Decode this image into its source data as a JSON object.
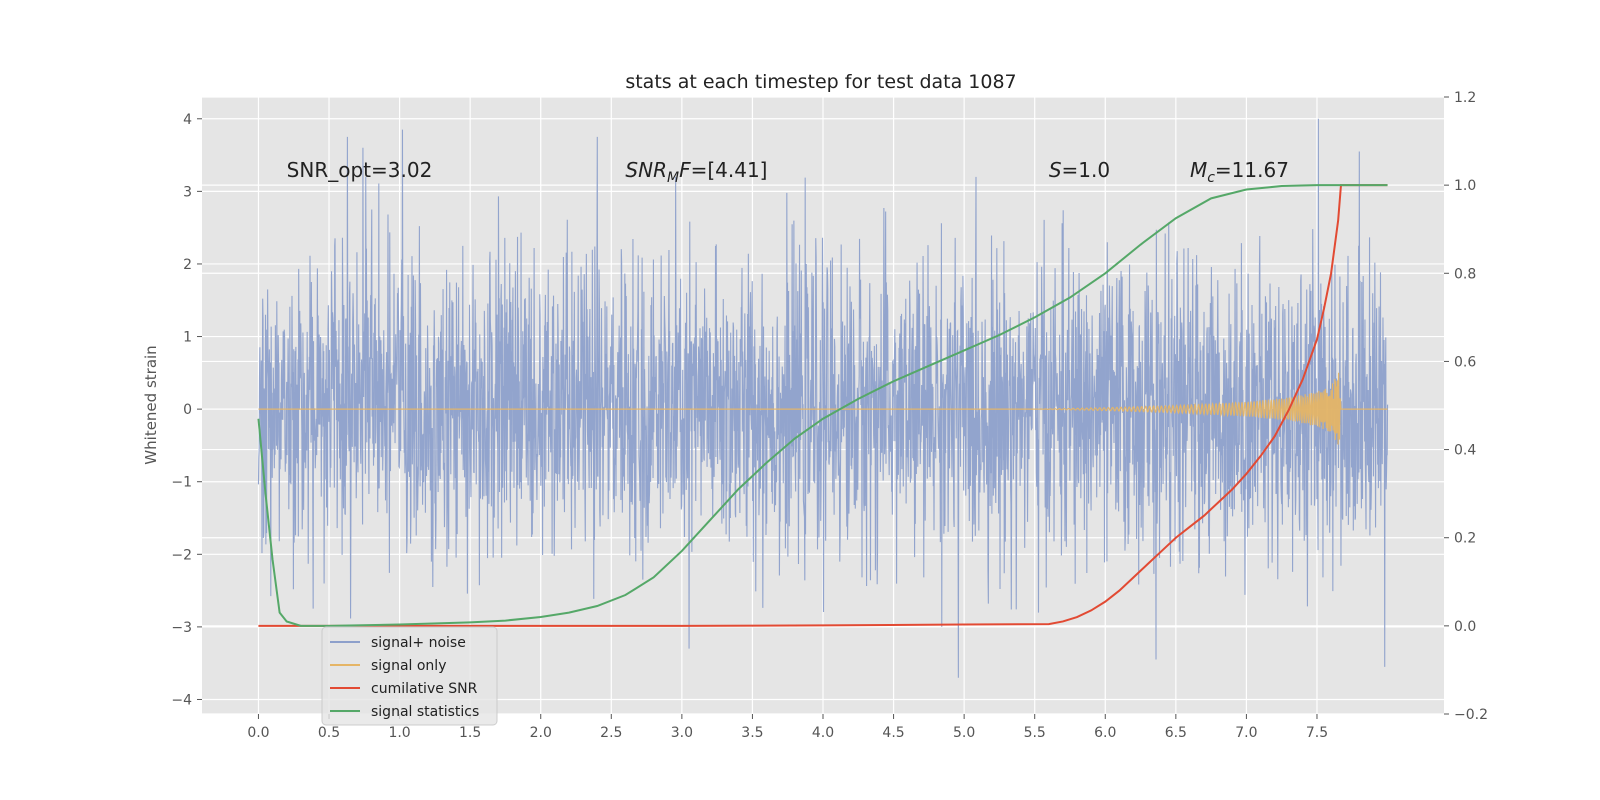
{
  "chart_data": {
    "type": "line",
    "title": "stats at each timestep for test data 1087",
    "ylabel": "Whitened strain",
    "xlim": [
      -0.4,
      8.4
    ],
    "ylim": [
      -4.2,
      4.3
    ],
    "y2lim": [
      -0.2,
      1.2
    ],
    "x_ticks": [
      "0.0",
      "0.5",
      "1.0",
      "1.5",
      "2.0",
      "2.5",
      "3.0",
      "3.5",
      "4.0",
      "4.5",
      "5.0",
      "5.5",
      "6.0",
      "6.5",
      "7.0",
      "7.5"
    ],
    "y_ticks": [
      "−4",
      "−3",
      "−2",
      "−1",
      "0",
      "1",
      "2",
      "3",
      "4"
    ],
    "y2_ticks": [
      "−0.2",
      "0.0",
      "0.2",
      "0.4",
      "0.6",
      "0.8",
      "1.0",
      "1.2"
    ],
    "grid": true,
    "legend_position": "lower-left",
    "annotations": [
      {
        "text": "SNR_opt=3.02",
        "x": 0.2,
        "y": 3.2
      },
      {
        "text": "SNRMF=[4.41]",
        "x": 2.6,
        "y": 3.2
      },
      {
        "text": "S=1.0",
        "x": 5.6,
        "y": 3.2
      },
      {
        "text": "Mc=11.67",
        "x": 6.6,
        "y": 3.2
      }
    ],
    "series": [
      {
        "name": "signal+ noise",
        "axis": "left",
        "color": "#8da0cb",
        "description_range": [
          -3.6,
          4.0
        ],
        "x": [
          0.0,
          8.0
        ],
        "peaks": [
          {
            "x": 0.63,
            "y": 3.75
          },
          {
            "x": 0.74,
            "y": 3.6
          },
          {
            "x": 1.02,
            "y": 3.85
          },
          {
            "x": 2.4,
            "y": 3.75
          },
          {
            "x": 7.51,
            "y": 4.0
          },
          {
            "x": 7.8,
            "y": 3.55
          },
          {
            "x": 4.96,
            "y": -3.7
          },
          {
            "x": 7.98,
            "y": -3.55
          },
          {
            "x": 6.36,
            "y": -3.45
          },
          {
            "x": 3.05,
            "y": -3.3
          }
        ]
      },
      {
        "name": "signal only",
        "axis": "left",
        "color": "#e5b566",
        "x": [
          0.0,
          5.5,
          6.0,
          6.5,
          7.0,
          7.3,
          7.5,
          7.6,
          7.66,
          7.67,
          8.0
        ],
        "amplitude": [
          0.0,
          0.0,
          0.02,
          0.05,
          0.1,
          0.16,
          0.24,
          0.32,
          0.55,
          0.0,
          0.0
        ]
      },
      {
        "name": "cumilative SNR",
        "axis": "right",
        "color": "#e24a33",
        "x": [
          0.0,
          1.0,
          2.0,
          3.0,
          4.0,
          5.0,
          5.6,
          5.7,
          5.8,
          5.9,
          6.0,
          6.1,
          6.2,
          6.3,
          6.4,
          6.5,
          6.6,
          6.7,
          6.8,
          6.9,
          7.0,
          7.1,
          7.2,
          7.3,
          7.4,
          7.5,
          7.55,
          7.6,
          7.65,
          7.67,
          8.0
        ],
        "values": [
          0.0,
          0.0,
          0.0,
          0.0,
          0.001,
          0.003,
          0.004,
          0.01,
          0.02,
          0.035,
          0.055,
          0.08,
          0.11,
          0.14,
          0.17,
          0.2,
          0.225,
          0.25,
          0.28,
          0.31,
          0.345,
          0.385,
          0.43,
          0.49,
          0.56,
          0.65,
          0.72,
          0.8,
          0.92,
          1.0,
          1.0
        ]
      },
      {
        "name": "signal statistics",
        "axis": "right",
        "color": "#55a868",
        "x": [
          0.0,
          0.05,
          0.1,
          0.15,
          0.2,
          0.3,
          0.5,
          1.0,
          1.5,
          1.75,
          2.0,
          2.2,
          2.4,
          2.6,
          2.8,
          3.0,
          3.2,
          3.4,
          3.6,
          3.8,
          4.0,
          4.25,
          4.5,
          4.75,
          5.0,
          5.25,
          5.5,
          5.75,
          6.0,
          6.25,
          6.5,
          6.75,
          7.0,
          7.25,
          7.5,
          7.75,
          8.0
        ],
        "values": [
          0.47,
          0.3,
          0.15,
          0.03,
          0.01,
          0.0,
          0.0,
          0.003,
          0.008,
          0.012,
          0.02,
          0.03,
          0.045,
          0.07,
          0.11,
          0.17,
          0.24,
          0.31,
          0.37,
          0.425,
          0.47,
          0.515,
          0.555,
          0.59,
          0.625,
          0.66,
          0.7,
          0.745,
          0.8,
          0.865,
          0.925,
          0.97,
          0.99,
          0.998,
          1.0,
          1.0,
          1.0
        ]
      }
    ]
  }
}
